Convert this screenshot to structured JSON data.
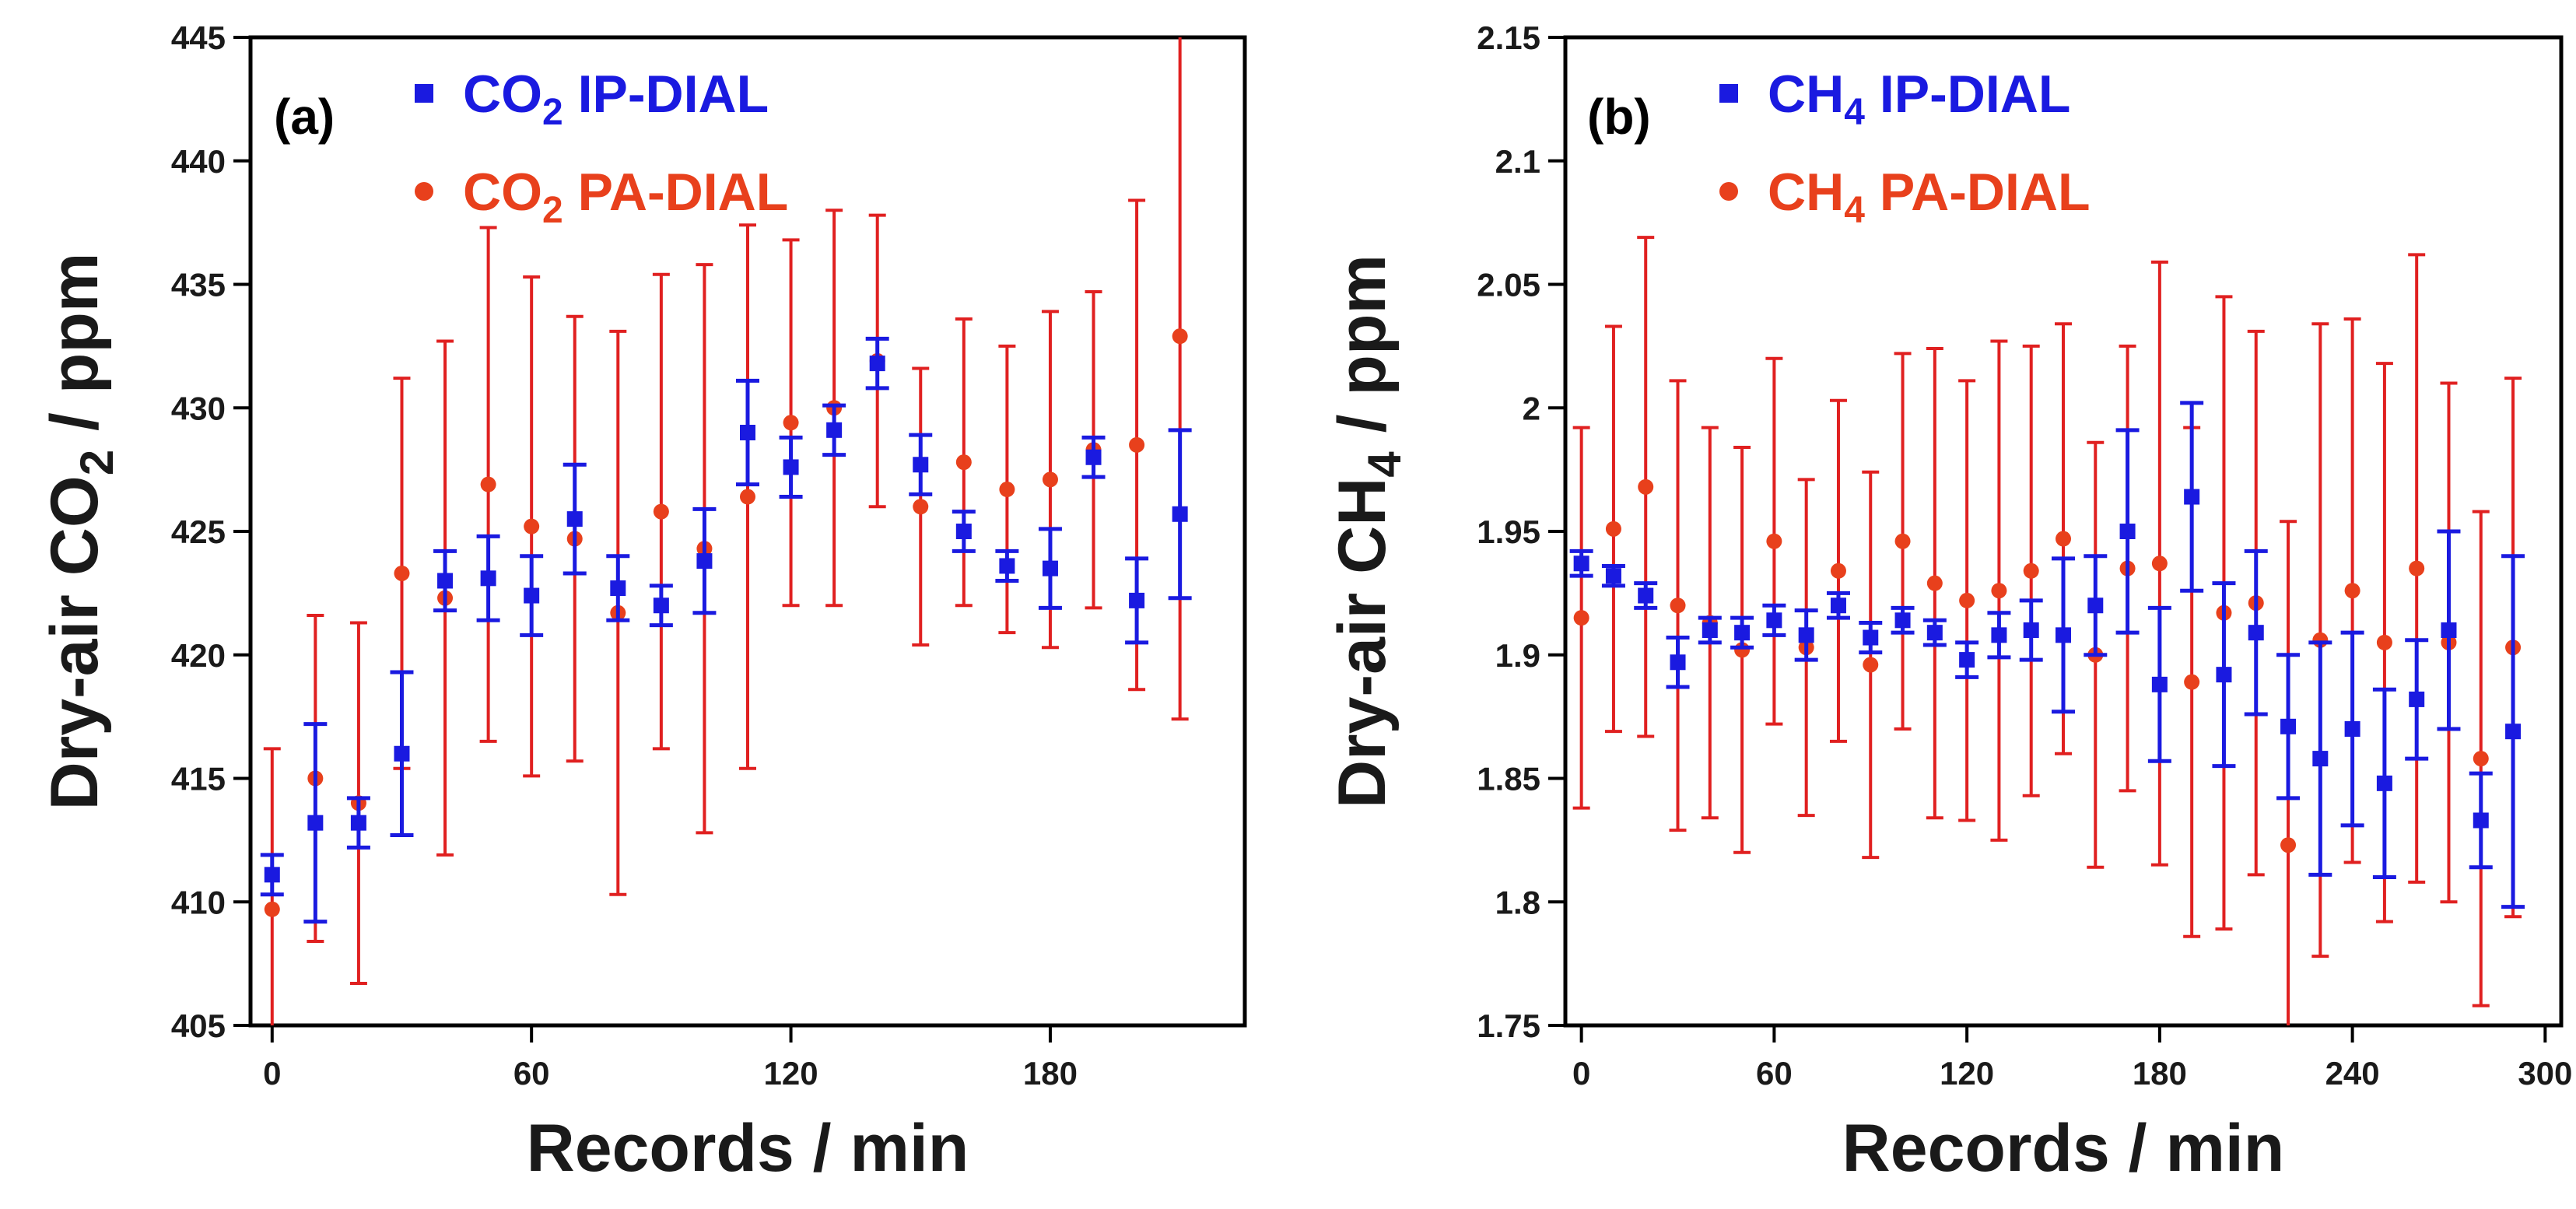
{
  "figure": {
    "colors": {
      "ip": "#1a1ae0",
      "pa": "#e8401c",
      "pa_errorbar": "#e02020",
      "axis": "#000000"
    }
  },
  "chart_data": [
    {
      "type": "scatter",
      "panel_tag": "(a)",
      "gas": "CO",
      "gas_sub": "2",
      "xlabel": "Records / min",
      "ylabel": "Dry-air CO",
      "ylabel_sub": "2",
      "ylabel_suffix": " / ppm",
      "xlim": [
        -5,
        225
      ],
      "ylim": [
        405,
        445
      ],
      "xticks": [
        0,
        60,
        120,
        180
      ],
      "xtick_labels": [
        "0",
        "60",
        "120",
        "180"
      ],
      "yticks": [
        405,
        410,
        415,
        420,
        425,
        430,
        435,
        440,
        445
      ],
      "ytick_labels": [
        "405",
        "410",
        "415",
        "420",
        "425",
        "430",
        "435",
        "440",
        "445"
      ],
      "legend": {
        "location": "top-left",
        "entries": [
          {
            "series": "ip",
            "prefix": "CO",
            "sub": "2",
            "suffix": " IP-DIAL"
          },
          {
            "series": "pa",
            "prefix": "CO",
            "sub": "2",
            "suffix": " PA-DIAL"
          }
        ]
      },
      "series": [
        {
          "key": "ip",
          "name": "CO2 IP-DIAL",
          "marker": "square",
          "x": [
            0,
            10,
            20,
            30,
            40,
            50,
            60,
            70,
            80,
            90,
            100,
            110,
            120,
            130,
            140,
            150,
            160,
            170,
            180,
            190,
            200,
            210
          ],
          "y": [
            411.1,
            413.2,
            413.2,
            416.0,
            423.0,
            423.1,
            422.4,
            425.5,
            422.7,
            422.0,
            423.8,
            429.0,
            427.6,
            429.1,
            431.8,
            427.7,
            425.0,
            423.6,
            423.5,
            428.0,
            422.2,
            425.7
          ],
          "yerr": [
            0.8,
            4.0,
            1.0,
            3.3,
            1.2,
            1.7,
            1.6,
            2.2,
            1.3,
            0.8,
            2.1,
            2.1,
            1.2,
            1.0,
            1.0,
            1.2,
            0.8,
            0.6,
            1.6,
            0.8,
            1.7,
            3.4
          ]
        },
        {
          "key": "pa",
          "name": "CO2 PA-DIAL",
          "marker": "circle",
          "x": [
            0,
            10,
            20,
            30,
            40,
            50,
            60,
            70,
            80,
            90,
            100,
            110,
            120,
            130,
            140,
            150,
            160,
            170,
            180,
            190,
            200,
            210
          ],
          "y": [
            409.7,
            415.0,
            414.0,
            423.3,
            422.3,
            426.9,
            425.2,
            424.7,
            421.7,
            425.8,
            424.3,
            426.4,
            429.4,
            430.0,
            431.9,
            426.0,
            427.8,
            426.7,
            427.1,
            428.3,
            428.5,
            432.9
          ],
          "yerr": [
            6.5,
            6.6,
            7.3,
            7.9,
            10.4,
            10.4,
            10.1,
            9.0,
            11.4,
            9.6,
            11.5,
            11.0,
            7.4,
            8.0,
            5.9,
            5.6,
            5.8,
            5.8,
            6.8,
            6.4,
            9.9,
            15.5
          ]
        }
      ]
    },
    {
      "type": "scatter",
      "panel_tag": "(b)",
      "gas": "CH",
      "gas_sub": "4",
      "xlabel": "Records / min",
      "ylabel": "Dry-air CH",
      "ylabel_sub": "4",
      "ylabel_suffix": "  / ppm",
      "xlim": [
        -5,
        305
      ],
      "ylim": [
        1.75,
        2.15
      ],
      "xticks": [
        0,
        60,
        120,
        180,
        240,
        300
      ],
      "xtick_labels": [
        "0",
        "60",
        "120",
        "180",
        "240",
        "300"
      ],
      "yticks": [
        1.75,
        1.8,
        1.85,
        1.9,
        1.95,
        2.0,
        2.05,
        2.1,
        2.15
      ],
      "ytick_labels": [
        "1.75",
        "1.8",
        "1.85",
        "1.9",
        "1.95",
        "2",
        "2.05",
        "2.1",
        "2.15"
      ],
      "legend": {
        "location": "top-left",
        "entries": [
          {
            "series": "ip",
            "prefix": "CH",
            "sub": "4",
            "suffix": " IP-DIAL"
          },
          {
            "series": "pa",
            "prefix": "CH",
            "sub": "4",
            "suffix": " PA-DIAL"
          }
        ]
      },
      "series": [
        {
          "key": "ip",
          "name": "CH4 IP-DIAL",
          "marker": "square",
          "x": [
            0,
            10,
            20,
            30,
            40,
            50,
            60,
            70,
            80,
            90,
            100,
            110,
            120,
            130,
            140,
            150,
            160,
            170,
            180,
            190,
            200,
            210,
            220,
            230,
            240,
            250,
            260,
            270,
            280,
            290
          ],
          "y": [
            1.937,
            1.932,
            1.924,
            1.897,
            1.91,
            1.909,
            1.914,
            1.908,
            1.92,
            1.907,
            1.914,
            1.909,
            1.898,
            1.908,
            1.91,
            1.908,
            1.92,
            1.95,
            1.888,
            1.964,
            1.892,
            1.909,
            1.871,
            1.858,
            1.87,
            1.848,
            1.882,
            1.91,
            1.833,
            1.869
          ],
          "yerr": [
            0.005,
            0.004,
            0.005,
            0.01,
            0.005,
            0.006,
            0.006,
            0.01,
            0.005,
            0.006,
            0.005,
            0.005,
            0.007,
            0.009,
            0.012,
            0.031,
            0.02,
            0.041,
            0.031,
            0.038,
            0.037,
            0.033,
            0.029,
            0.047,
            0.039,
            0.038,
            0.024,
            0.04,
            0.019,
            0.071
          ]
        },
        {
          "key": "pa",
          "name": "CH4 PA-DIAL",
          "marker": "circle",
          "x": [
            0,
            10,
            20,
            30,
            40,
            50,
            60,
            70,
            80,
            90,
            100,
            110,
            120,
            130,
            140,
            150,
            160,
            170,
            180,
            190,
            200,
            210,
            220,
            230,
            240,
            250,
            260,
            270,
            280,
            290
          ],
          "y": [
            1.915,
            1.951,
            1.968,
            1.92,
            1.913,
            1.902,
            1.946,
            1.903,
            1.934,
            1.896,
            1.946,
            1.929,
            1.922,
            1.926,
            1.934,
            1.947,
            1.9,
            1.935,
            1.937,
            1.889,
            1.917,
            1.921,
            1.823,
            1.906,
            1.926,
            1.905,
            1.935,
            1.905,
            1.858,
            1.903
          ],
          "yerr": [
            0.077,
            0.082,
            0.101,
            0.091,
            0.079,
            0.082,
            0.074,
            0.068,
            0.069,
            0.078,
            0.076,
            0.095,
            0.089,
            0.101,
            0.091,
            0.087,
            0.086,
            0.09,
            0.122,
            0.103,
            0.128,
            0.11,
            0.131,
            0.128,
            0.11,
            0.113,
            0.127,
            0.105,
            0.1,
            0.109
          ]
        }
      ]
    }
  ]
}
